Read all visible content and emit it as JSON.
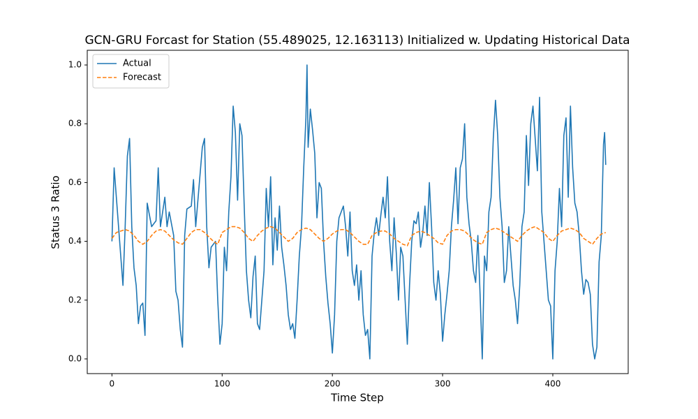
{
  "chart_data": {
    "type": "line",
    "title": "GCN-GRU Forcast for Station (55.489025, 12.163113) Initialized w. Updating Historical Data",
    "xlabel": "Time Step",
    "ylabel": "Status 3 Ratio",
    "xlim": [
      -22.4,
      468.4
    ],
    "ylim": [
      -0.05,
      1.05
    ],
    "xticks": [
      0,
      100,
      200,
      300,
      400
    ],
    "yticks": [
      {
        "value": 0,
        "label": "0.0"
      },
      0.2,
      0.4,
      0.6,
      0.8,
      {
        "value": 1,
        "label": "1.0"
      }
    ],
    "legend": "upper left",
    "series": [
      {
        "name": "Actual",
        "color": "#1f77b4",
        "style": "solid",
        "x": [
          0,
          2,
          4,
          8,
          10,
          12,
          14,
          16,
          18,
          20,
          22,
          24,
          26,
          28,
          30,
          32,
          36,
          40,
          42,
          44,
          48,
          50,
          52,
          56,
          58,
          60,
          62,
          64,
          66,
          68,
          72,
          74,
          76,
          80,
          82,
          84,
          86,
          88,
          90,
          94,
          96,
          98,
          100,
          102,
          104,
          106,
          108,
          110,
          112,
          114,
          116,
          118,
          120,
          122,
          124,
          126,
          128,
          130,
          132,
          134,
          136,
          138,
          140,
          142,
          144,
          146,
          148,
          150,
          152,
          154,
          156,
          158,
          160,
          162,
          164,
          166,
          168,
          170,
          172,
          174,
          176,
          177,
          178,
          180,
          182,
          184,
          186,
          188,
          190,
          192,
          194,
          196,
          198,
          200,
          202,
          204,
          206,
          208,
          210,
          212,
          214,
          216,
          218,
          220,
          222,
          224,
          226,
          228,
          230,
          232,
          234,
          236,
          238,
          240,
          242,
          244,
          246,
          248,
          250,
          252,
          254,
          256,
          258,
          260,
          262,
          264,
          266,
          268,
          270,
          272,
          274,
          276,
          278,
          280,
          282,
          284,
          286,
          288,
          290,
          292,
          294,
          296,
          298,
          300,
          302,
          304,
          306,
          308,
          310,
          312,
          314,
          316,
          318,
          320,
          322,
          324,
          326,
          328,
          330,
          332,
          334,
          336,
          338,
          340,
          342,
          344,
          346,
          348,
          350,
          352,
          354,
          356,
          358,
          360,
          362,
          364,
          366,
          368,
          370,
          372,
          374,
          376,
          378,
          380,
          382,
          384,
          386,
          388,
          390,
          392,
          394,
          396,
          398,
          400,
          402,
          404,
          406,
          408,
          410,
          412,
          414,
          416,
          418,
          420,
          422,
          424,
          426,
          428,
          430,
          432,
          434,
          436,
          438,
          440,
          442,
          444,
          446,
          447,
          448
        ],
        "values": [
          0.4,
          0.65,
          0.55,
          0.35,
          0.25,
          0.45,
          0.69,
          0.75,
          0.45,
          0.31,
          0.25,
          0.12,
          0.18,
          0.19,
          0.08,
          0.53,
          0.45,
          0.47,
          0.65,
          0.45,
          0.55,
          0.45,
          0.5,
          0.42,
          0.23,
          0.2,
          0.1,
          0.04,
          0.42,
          0.51,
          0.52,
          0.61,
          0.45,
          0.63,
          0.72,
          0.75,
          0.45,
          0.31,
          0.38,
          0.4,
          0.2,
          0.05,
          0.12,
          0.38,
          0.3,
          0.5,
          0.62,
          0.86,
          0.77,
          0.54,
          0.8,
          0.76,
          0.52,
          0.3,
          0.2,
          0.14,
          0.28,
          0.35,
          0.12,
          0.1,
          0.2,
          0.3,
          0.58,
          0.45,
          0.62,
          0.32,
          0.48,
          0.37,
          0.52,
          0.38,
          0.32,
          0.25,
          0.15,
          0.1,
          0.12,
          0.07,
          0.2,
          0.35,
          0.45,
          0.65,
          0.82,
          1.0,
          0.72,
          0.85,
          0.78,
          0.7,
          0.48,
          0.6,
          0.58,
          0.4,
          0.28,
          0.19,
          0.12,
          0.02,
          0.15,
          0.4,
          0.48,
          0.5,
          0.52,
          0.45,
          0.35,
          0.5,
          0.3,
          0.25,
          0.32,
          0.2,
          0.3,
          0.15,
          0.08,
          0.1,
          0.0,
          0.35,
          0.43,
          0.48,
          0.42,
          0.49,
          0.55,
          0.48,
          0.62,
          0.4,
          0.3,
          0.48,
          0.36,
          0.2,
          0.38,
          0.35,
          0.2,
          0.05,
          0.25,
          0.4,
          0.47,
          0.46,
          0.5,
          0.38,
          0.43,
          0.52,
          0.42,
          0.6,
          0.45,
          0.26,
          0.2,
          0.3,
          0.22,
          0.06,
          0.15,
          0.22,
          0.3,
          0.45,
          0.54,
          0.65,
          0.46,
          0.65,
          0.68,
          0.8,
          0.55,
          0.46,
          0.4,
          0.3,
          0.26,
          0.42,
          0.22,
          0.0,
          0.35,
          0.3,
          0.5,
          0.55,
          0.75,
          0.88,
          0.76,
          0.55,
          0.45,
          0.26,
          0.3,
          0.45,
          0.35,
          0.25,
          0.2,
          0.12,
          0.25,
          0.45,
          0.5,
          0.76,
          0.59,
          0.8,
          0.86,
          0.75,
          0.64,
          0.89,
          0.5,
          0.4,
          0.3,
          0.2,
          0.18,
          0.0,
          0.3,
          0.4,
          0.58,
          0.45,
          0.76,
          0.82,
          0.55,
          0.86,
          0.65,
          0.53,
          0.5,
          0.42,
          0.3,
          0.22,
          0.27,
          0.26,
          0.22,
          0.05,
          0.0,
          0.04,
          0.33,
          0.42,
          0.73,
          0.77,
          0.66
        ]
      },
      {
        "name": "Forecast",
        "color": "#ff7f0e",
        "style": "dashed",
        "x": [
          0,
          4,
          8,
          12,
          16,
          20,
          24,
          28,
          32,
          36,
          40,
          44,
          48,
          52,
          56,
          60,
          64,
          68,
          72,
          76,
          80,
          84,
          88,
          92,
          96,
          100,
          104,
          108,
          112,
          116,
          120,
          124,
          128,
          132,
          136,
          140,
          144,
          148,
          152,
          156,
          160,
          164,
          168,
          172,
          176,
          180,
          184,
          188,
          192,
          196,
          200,
          204,
          208,
          212,
          216,
          220,
          224,
          228,
          232,
          236,
          240,
          244,
          248,
          252,
          256,
          260,
          264,
          268,
          272,
          276,
          280,
          284,
          288,
          292,
          296,
          300,
          304,
          308,
          312,
          316,
          320,
          324,
          328,
          332,
          336,
          340,
          344,
          348,
          352,
          356,
          360,
          364,
          368,
          372,
          376,
          380,
          384,
          388,
          392,
          396,
          400,
          404,
          408,
          412,
          416,
          420,
          424,
          428,
          432,
          436,
          440,
          444,
          448
        ],
        "values": [
          0.41,
          0.43,
          0.435,
          0.44,
          0.435,
          0.42,
          0.4,
          0.39,
          0.4,
          0.42,
          0.435,
          0.44,
          0.435,
          0.42,
          0.405,
          0.395,
          0.39,
          0.41,
          0.43,
          0.44,
          0.44,
          0.43,
          0.415,
          0.4,
          0.39,
          0.43,
          0.44,
          0.45,
          0.45,
          0.445,
          0.43,
          0.41,
          0.4,
          0.42,
          0.435,
          0.445,
          0.45,
          0.445,
          0.43,
          0.415,
          0.4,
          0.41,
          0.43,
          0.44,
          0.445,
          0.44,
          0.425,
          0.41,
          0.4,
          0.41,
          0.425,
          0.435,
          0.44,
          0.44,
          0.43,
          0.415,
          0.4,
          0.39,
          0.39,
          0.42,
          0.43,
          0.435,
          0.435,
          0.425,
          0.41,
          0.4,
          0.39,
          0.385,
          0.42,
          0.43,
          0.435,
          0.43,
          0.42,
          0.41,
          0.395,
          0.39,
          0.42,
          0.435,
          0.44,
          0.44,
          0.435,
          0.42,
          0.405,
          0.395,
          0.39,
          0.43,
          0.44,
          0.445,
          0.44,
          0.43,
          0.42,
          0.41,
          0.4,
          0.42,
          0.435,
          0.445,
          0.45,
          0.44,
          0.43,
          0.41,
          0.4,
          0.42,
          0.435,
          0.44,
          0.445,
          0.44,
          0.43,
          0.41,
          0.4,
          0.39,
          0.41,
          0.425,
          0.43
        ]
      }
    ]
  }
}
